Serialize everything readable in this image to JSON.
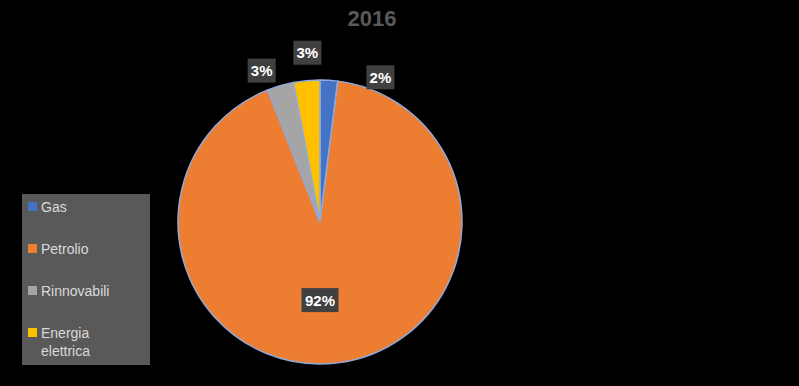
{
  "chart_data": {
    "type": "pie",
    "title": "2016",
    "categories": [
      "Gas",
      "Petrolio",
      "Rinnovabili",
      "Energia elettrica"
    ],
    "values": [
      2,
      92,
      3,
      3
    ],
    "value_labels": [
      "2%",
      "92%",
      "3%",
      "3%"
    ],
    "colors": [
      "#4472c4",
      "#ed7d31",
      "#a5a5a5",
      "#ffc000"
    ],
    "data_labels": true,
    "legend": "bottom-left"
  }
}
